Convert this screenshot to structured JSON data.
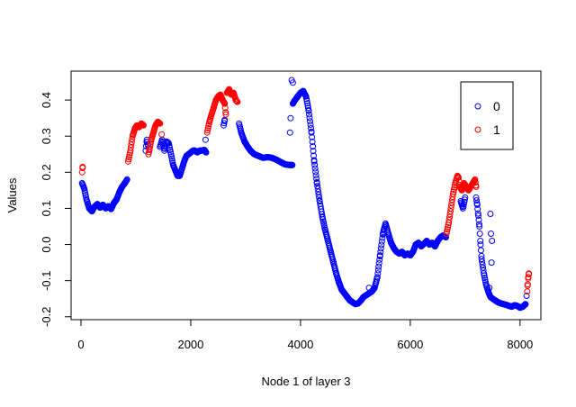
{
  "chart_data": {
    "type": "scatter",
    "title": "",
    "xlabel": "Node 1 of layer 3",
    "ylabel": "Values",
    "xlim": [
      -180,
      8380
    ],
    "ylim": [
      -0.208,
      0.48
    ],
    "xticks": [
      0,
      2000,
      4000,
      6000,
      8000
    ],
    "xtick_labels": [
      "0",
      "2000",
      "4000",
      "6000",
      "8000"
    ],
    "yticks": [
      -0.2,
      -0.1,
      0.0,
      0.1,
      0.2,
      0.3,
      0.4
    ],
    "ytick_labels": [
      "-0.2",
      "-0.1",
      "0.0",
      "0.1",
      "0.2",
      "0.3",
      "0.4"
    ],
    "grid": false,
    "legend": {
      "position": "top-right",
      "entries": [
        "0",
        "1"
      ]
    },
    "series": [
      {
        "name": "0",
        "color": "#0000ff",
        "segments": [
          [
            [
              20,
              0.17
            ],
            [
              60,
              0.155
            ],
            [
              100,
              0.125
            ],
            [
              150,
              0.1
            ],
            [
              200,
              0.092
            ],
            [
              250,
              0.105
            ],
            [
              300,
              0.112
            ],
            [
              350,
              0.102
            ],
            [
              400,
              0.11
            ],
            [
              450,
              0.1
            ],
            [
              500,
              0.106
            ],
            [
              550,
              0.098
            ],
            [
              600,
              0.115
            ],
            [
              650,
              0.125
            ],
            [
              700,
              0.145
            ],
            [
              750,
              0.16
            ],
            [
              800,
              0.17
            ],
            [
              840,
              0.18
            ]
          ],
          [
            [
              1180,
              0.26
            ],
            [
              1200,
              0.29
            ],
            [
              1220,
              0.275
            ]
          ],
          [
            [
              1440,
              0.27
            ],
            [
              1480,
              0.29
            ],
            [
              1520,
              0.26
            ],
            [
              1560,
              0.285
            ],
            [
              1600,
              0.28
            ],
            [
              1640,
              0.25
            ],
            [
              1680,
              0.22
            ],
            [
              1720,
              0.205
            ],
            [
              1760,
              0.19
            ],
            [
              1800,
              0.19
            ],
            [
              1840,
              0.21
            ],
            [
              1880,
              0.23
            ],
            [
              1920,
              0.245
            ],
            [
              1960,
              0.25
            ],
            [
              2000,
              0.255
            ],
            [
              2040,
              0.26
            ],
            [
              2080,
              0.26
            ],
            [
              2120,
              0.255
            ],
            [
              2160,
              0.26
            ],
            [
              2200,
              0.26
            ],
            [
              2250,
              0.262
            ],
            [
              2280,
              0.255
            ]
          ],
          [
            [
              2270,
              0.29
            ]
          ],
          [
            [
              2600,
              0.33
            ],
            [
              2620,
              0.345
            ]
          ],
          [
            [
              2880,
              0.335
            ],
            [
              2920,
              0.31
            ],
            [
              2980,
              0.285
            ],
            [
              3040,
              0.27
            ],
            [
              3100,
              0.258
            ],
            [
              3160,
              0.25
            ],
            [
              3240,
              0.245
            ],
            [
              3320,
              0.24
            ],
            [
              3400,
              0.242
            ],
            [
              3480,
              0.24
            ],
            [
              3560,
              0.235
            ],
            [
              3640,
              0.228
            ],
            [
              3720,
              0.222
            ],
            [
              3800,
              0.22
            ],
            [
              3850,
              0.22
            ]
          ],
          [
            [
              3810,
              0.31
            ]
          ],
          [
            [
              3820,
              0.35
            ]
          ],
          [
            [
              3840,
              0.455
            ]
          ],
          [
            [
              3860,
              0.448
            ]
          ],
          [
            [
              3860,
              0.39
            ],
            [
              3900,
              0.4
            ],
            [
              3950,
              0.41
            ],
            [
              4000,
              0.42
            ],
            [
              4050,
              0.425
            ],
            [
              4100,
              0.41
            ],
            [
              4150,
              0.37
            ],
            [
              4200,
              0.31
            ],
            [
              4250,
              0.23
            ],
            [
              4300,
              0.17
            ],
            [
              4350,
              0.12
            ],
            [
              4400,
              0.075
            ],
            [
              4450,
              0.04
            ],
            [
              4500,
              0.01
            ],
            [
              4550,
              -0.02
            ],
            [
              4600,
              -0.05
            ],
            [
              4650,
              -0.08
            ],
            [
              4700,
              -0.105
            ],
            [
              4750,
              -0.125
            ],
            [
              4800,
              -0.135
            ],
            [
              4850,
              -0.145
            ],
            [
              4900,
              -0.155
            ],
            [
              4950,
              -0.16
            ],
            [
              5000,
              -0.165
            ],
            [
              5050,
              -0.163
            ],
            [
              5100,
              -0.155
            ],
            [
              5150,
              -0.145
            ],
            [
              5200,
              -0.14
            ],
            [
              5250,
              -0.135
            ],
            [
              5300,
              -0.13
            ],
            [
              5350,
              -0.12
            ],
            [
              5400,
              -0.09
            ],
            [
              5450,
              -0.03
            ],
            [
              5500,
              0.03
            ],
            [
              5550,
              0.058
            ],
            [
              5600,
              0.03
            ],
            [
              5650,
              0.005
            ],
            [
              5700,
              -0.01
            ],
            [
              5750,
              -0.02
            ],
            [
              5800,
              -0.025
            ],
            [
              5850,
              -0.02
            ],
            [
              5900,
              -0.03
            ],
            [
              5950,
              -0.025
            ],
            [
              6000,
              -0.03
            ],
            [
              6050,
              -0.02
            ],
            [
              6100,
              0.0
            ],
            [
              6150,
              0.005
            ],
            [
              6200,
              -0.005
            ],
            [
              6250,
              0.002
            ],
            [
              6300,
              0.01
            ],
            [
              6350,
              0.0
            ],
            [
              6400,
              0.005
            ],
            [
              6450,
              -0.005
            ],
            [
              6500,
              0.01
            ],
            [
              6550,
              0.02
            ],
            [
              6600,
              0.025
            ],
            [
              6650,
              0.02
            ]
          ],
          [
            [
              5250,
              -0.12
            ]
          ],
          [
            [
              6920,
              0.12
            ],
            [
              6960,
              0.1
            ],
            [
              7000,
              0.13
            ]
          ],
          [
            [
              7200,
              0.13
            ],
            [
              7220,
              0.11
            ],
            [
              7240,
              0.08
            ],
            [
              7260,
              0.05
            ],
            [
              7280,
              0.0
            ],
            [
              7300,
              -0.04
            ],
            [
              7340,
              -0.08
            ],
            [
              7380,
              -0.11
            ],
            [
              7420,
              -0.13
            ],
            [
              7460,
              -0.145
            ],
            [
              7500,
              -0.15
            ],
            [
              7550,
              -0.155
            ],
            [
              7600,
              -0.16
            ],
            [
              7650,
              -0.163
            ],
            [
              7700,
              -0.165
            ],
            [
              7750,
              -0.167
            ],
            [
              7800,
              -0.17
            ],
            [
              7850,
              -0.172
            ],
            [
              7900,
              -0.168
            ],
            [
              7950,
              -0.17
            ],
            [
              8000,
              -0.175
            ],
            [
              8050,
              -0.172
            ],
            [
              8100,
              -0.165
            ]
          ],
          [
            [
              7440,
              -0.12
            ]
          ],
          [
            [
              7460,
              0.085
            ]
          ],
          [
            [
              7470,
              0.03
            ]
          ],
          [
            [
              7480,
              -0.05
            ]
          ],
          [
            [
              7490,
              0.01
            ]
          ],
          [
            [
              8120,
              -0.142
            ]
          ]
        ]
      },
      {
        "name": "1",
        "color": "#ff0000",
        "segments": [
          [
            [
              20,
              0.2
            ],
            [
              30,
              0.215
            ]
          ],
          [
            [
              860,
              0.23
            ],
            [
              900,
              0.26
            ],
            [
              940,
              0.3
            ],
            [
              980,
              0.32
            ],
            [
              1020,
              0.33
            ],
            [
              1060,
              0.325
            ],
            [
              1100,
              0.335
            ],
            [
              1140,
              0.33
            ]
          ],
          [
            [
              1230,
              0.25
            ],
            [
              1250,
              0.265
            ],
            [
              1280,
              0.29
            ],
            [
              1320,
              0.31
            ],
            [
              1360,
              0.33
            ],
            [
              1400,
              0.34
            ],
            [
              1440,
              0.335
            ]
          ],
          [
            [
              1470,
              0.305
            ]
          ],
          [
            [
              2300,
              0.31
            ],
            [
              2340,
              0.34
            ],
            [
              2380,
              0.36
            ],
            [
              2420,
              0.38
            ],
            [
              2460,
              0.4
            ],
            [
              2500,
              0.41
            ],
            [
              2540,
              0.415
            ],
            [
              2580,
              0.4
            ],
            [
              2620,
              0.39
            ],
            [
              2640,
              0.36
            ]
          ],
          [
            [
              2660,
              0.42
            ],
            [
              2700,
              0.43
            ],
            [
              2740,
              0.415
            ],
            [
              2780,
              0.42
            ],
            [
              2820,
              0.4
            ],
            [
              2850,
              0.395
            ]
          ],
          [
            [
              6660,
              0.03
            ],
            [
              6700,
              0.06
            ],
            [
              6740,
              0.1
            ],
            [
              6780,
              0.14
            ],
            [
              6820,
              0.17
            ],
            [
              6860,
              0.19
            ],
            [
              6880,
              0.185
            ],
            [
              6900,
              0.16
            ],
            [
              6940,
              0.15
            ],
            [
              6980,
              0.17
            ],
            [
              7020,
              0.16
            ],
            [
              7060,
              0.15
            ],
            [
              7100,
              0.16
            ],
            [
              7140,
              0.17
            ],
            [
              7180,
              0.18
            ],
            [
              7200,
              0.16
            ]
          ],
          [
            [
              8130,
              -0.13
            ],
            [
              8140,
              -0.11
            ],
            [
              8150,
              -0.09
            ],
            [
              8160,
              -0.08
            ]
          ]
        ]
      }
    ]
  }
}
